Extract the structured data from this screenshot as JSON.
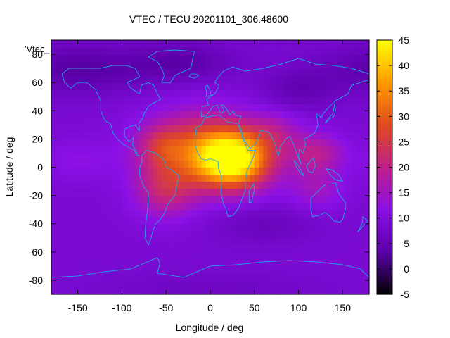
{
  "chart_data": {
    "type": "heatmap",
    "title": "VTEC / TECU 20201101_306.48600",
    "xlabel": "Longitude / deg",
    "ylabel": "Latitude / deg",
    "annotation": "'Vtec_",
    "xlim": [
      -180,
      180
    ],
    "ylim": [
      -90,
      90
    ],
    "x_ticks": [
      -150,
      -100,
      -50,
      0,
      50,
      100,
      150
    ],
    "y_ticks": [
      -80,
      -60,
      -40,
      -20,
      0,
      20,
      40,
      60,
      80
    ],
    "colorbar": {
      "range": [
        -5,
        45
      ],
      "ticks": [
        -5,
        0,
        5,
        10,
        15,
        20,
        25,
        30,
        35,
        40,
        45
      ],
      "colormap": [
        "#000000",
        "#5a00a8",
        "#8a10e6",
        "#c0208a",
        "#e04a20",
        "#ff9a00",
        "#ffff00"
      ]
    },
    "coastline_color": "#1ea6e6",
    "grid_resolution_deg": 5,
    "field_model": {
      "background": 9,
      "peaks": [
        {
          "lon": 25,
          "lat": 5,
          "amplitude": 34,
          "sigma_lon": 30,
          "sigma_lat": 14
        },
        {
          "lon": -10,
          "lat": 15,
          "amplitude": 16,
          "sigma_lon": 45,
          "sigma_lat": 18
        },
        {
          "lon": -50,
          "lat": -15,
          "amplitude": 12,
          "sigma_lon": 25,
          "sigma_lat": 14
        },
        {
          "lon": -55,
          "lat": 15,
          "amplitude": 8,
          "sigma_lon": 18,
          "sigma_lat": 10
        },
        {
          "lon": 120,
          "lat": 10,
          "amplitude": 10,
          "sigma_lon": 22,
          "sigma_lat": 10
        },
        {
          "lon": 120,
          "lat": -15,
          "amplitude": 6,
          "sigma_lon": 22,
          "sigma_lat": 10
        },
        {
          "lon": 75,
          "lat": 25,
          "amplitude": 6,
          "sigma_lon": 20,
          "sigma_lat": 10
        },
        {
          "lon": -150,
          "lat": 5,
          "amplitude": 3,
          "sigma_lon": 30,
          "sigma_lat": 10
        }
      ],
      "troughs": [
        {
          "lon": -150,
          "lat": 70,
          "amplitude": -6,
          "sigma_lon": 60,
          "sigma_lat": 12
        },
        {
          "lon": 100,
          "lat": 55,
          "amplitude": -4,
          "sigma_lon": 30,
          "sigma_lat": 10
        },
        {
          "lon": -30,
          "lat": 75,
          "amplitude": -5,
          "sigma_lon": 40,
          "sigma_lat": 10
        },
        {
          "lon": 60,
          "lat": -40,
          "amplitude": -3,
          "sigma_lon": 40,
          "sigma_lat": 10
        },
        {
          "lon": 0,
          "lat": -85,
          "amplitude": -2,
          "sigma_lon": 80,
          "sigma_lat": 8
        }
      ]
    }
  }
}
